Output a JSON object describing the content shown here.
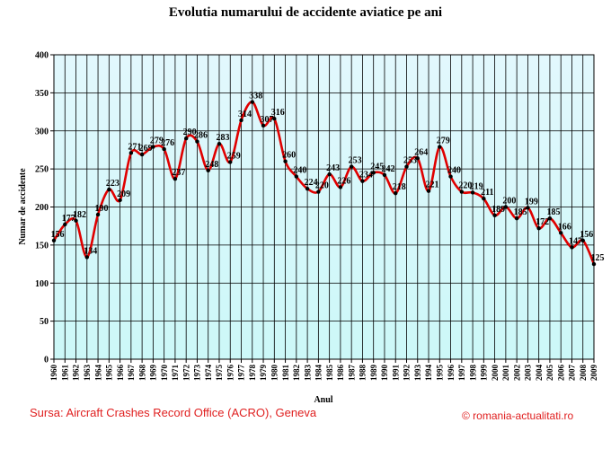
{
  "chart_data": {
    "type": "line",
    "title": "Evolutia numarului de accidente aviatice pe ani",
    "xlabel": "Anul",
    "ylabel": "Numar de accidente",
    "ylim": [
      0,
      400
    ],
    "yticks": [
      0,
      50,
      100,
      150,
      200,
      250,
      300,
      350,
      400
    ],
    "grid": true,
    "smooth": true,
    "series_color": "#e00000",
    "marker_color": "#000000",
    "background_gradient": [
      "#ccf8f8",
      "#e2f8fd"
    ],
    "categories": [
      "1960",
      "1961",
      "1962",
      "1963",
      "1964",
      "1965",
      "1966",
      "1967",
      "1968",
      "1969",
      "1970",
      "1971",
      "1972",
      "1973",
      "1974",
      "1975",
      "1976",
      "1977",
      "1978",
      "1979",
      "1980",
      "1981",
      "1982",
      "1983",
      "1984",
      "1985",
      "1986",
      "1987",
      "1988",
      "1989",
      "1990",
      "1991",
      "1992",
      "1993",
      "1994",
      "1995",
      "1996",
      "1997",
      "1998",
      "1999",
      "2000",
      "2001",
      "2002",
      "2003",
      "2004",
      "2005",
      "2006",
      "2007",
      "2008",
      "2009"
    ],
    "series": [
      {
        "values": [
          156,
          177,
          182,
          134,
          190,
          223,
          209,
          271,
          269,
          279,
          276,
          237,
          290,
          286,
          248,
          283,
          259,
          314,
          338,
          307,
          316,
          260,
          240,
          224,
          220,
          243,
          226,
          253,
          234,
          245,
          242,
          218,
          253,
          264,
          221,
          279,
          240,
          220,
          219,
          211,
          189,
          200,
          185,
          199,
          172,
          185,
          166,
          147,
          156,
          125
        ],
        "labels": [
          "156",
          "177",
          "182",
          "134",
          "190",
          "223",
          "209",
          "271",
          "269",
          "279",
          "276",
          "237",
          "290",
          "286",
          "248",
          "283",
          "259",
          "314",
          "338",
          "307",
          "316",
          "260",
          "240",
          "224",
          "220",
          "243",
          "226",
          "253",
          "234",
          "245",
          "242",
          "218",
          "253",
          "264",
          "221",
          "279",
          "240",
          "220",
          "219",
          "211",
          "189",
          "200",
          "185",
          "199",
          "172",
          "185",
          "166",
          "147",
          "156",
          "125"
        ]
      }
    ]
  },
  "footer": {
    "source": "Sursa: Aircraft Crashes Record Office (ACRO), Geneva",
    "credit": "© romania-actualitati.ro"
  }
}
